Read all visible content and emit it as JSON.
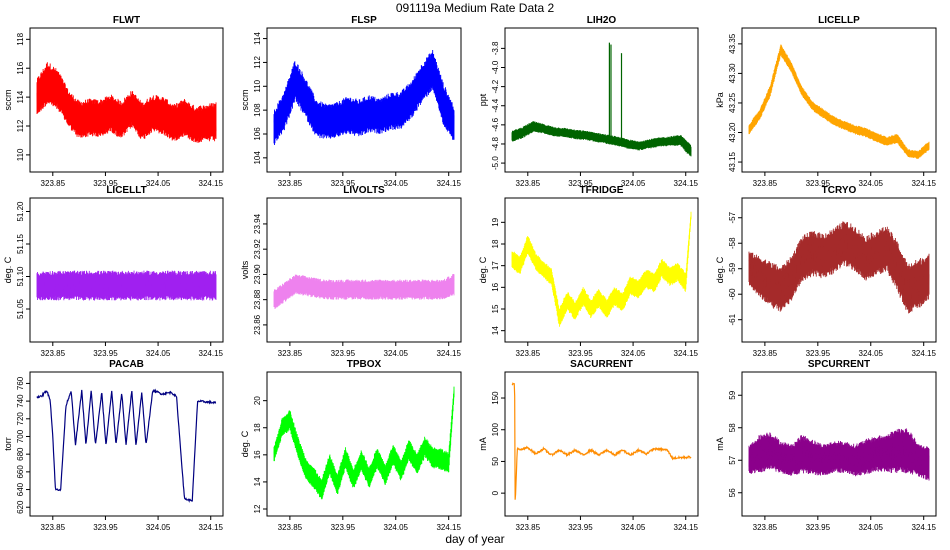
{
  "figure": {
    "title": "091119a   Medium Rate Data 2",
    "xlabel": "day of year"
  },
  "chart_data": [
    {
      "type": "line",
      "title": "FLWT",
      "ylabel": "sccm",
      "color": "#ff0000",
      "xlim": [
        323.82,
        324.16
      ],
      "ylim": [
        109.3,
        118.3
      ],
      "yticks": [
        110,
        112,
        114,
        116,
        118
      ],
      "xticks": [
        323.85,
        323.95,
        324.05,
        324.15
      ],
      "x": [
        323.82,
        323.84,
        323.86,
        323.88,
        323.9,
        323.92,
        323.94,
        323.96,
        323.98,
        324.0,
        324.02,
        324.04,
        324.06,
        324.08,
        324.1,
        324.12,
        324.14,
        324.16
      ],
      "y_mid": [
        114.0,
        115.0,
        114.5,
        113.2,
        112.4,
        112.6,
        112.5,
        112.9,
        112.4,
        113.2,
        112.3,
        112.9,
        112.7,
        112.2,
        112.6,
        112.1,
        112.2,
        112.3
      ],
      "y_band": [
        2.6,
        3.0,
        2.8,
        2.6,
        2.7,
        2.6,
        2.7,
        2.6,
        2.7,
        2.6,
        2.7,
        2.6,
        2.7,
        2.6,
        2.6,
        2.6,
        2.6,
        2.8
      ]
    },
    {
      "type": "line",
      "title": "FLSP",
      "ylabel": "sccm",
      "color": "#0000ff",
      "xlim": [
        323.82,
        324.16
      ],
      "ylim": [
        103.4,
        114.3
      ],
      "yticks": [
        104,
        106,
        108,
        110,
        112,
        114
      ],
      "xticks": [
        323.85,
        323.95,
        324.05,
        324.15
      ],
      "x": [
        323.82,
        323.84,
        323.86,
        323.88,
        323.9,
        323.92,
        323.94,
        323.96,
        323.98,
        324.0,
        324.02,
        324.04,
        324.06,
        324.08,
        324.1,
        324.12,
        324.14,
        324.16
      ],
      "y_mid": [
        106.5,
        108.0,
        110.5,
        109.0,
        107.3,
        107.0,
        107.2,
        107.6,
        107.3,
        107.7,
        107.5,
        107.9,
        108.0,
        108.9,
        110.3,
        111.4,
        108.5,
        106.8
      ],
      "y_band": [
        3.0,
        3.4,
        3.6,
        3.4,
        3.2,
        3.0,
        3.0,
        3.2,
        3.2,
        3.2,
        3.0,
        3.2,
        3.2,
        3.2,
        3.4,
        3.4,
        3.6,
        3.2
      ]
    },
    {
      "type": "line",
      "title": "LIH2O",
      "ylabel": "ppt",
      "color": "#006400",
      "xlim": [
        323.82,
        324.16
      ],
      "ylim": [
        -5.02,
        -3.66
      ],
      "yticks": [
        -5.0,
        -4.8,
        -4.6,
        -4.4,
        -4.2,
        -4.0,
        -3.8
      ],
      "xticks": [
        323.85,
        323.95,
        324.05,
        324.15
      ],
      "x": [
        323.82,
        323.84,
        323.86,
        323.88,
        323.9,
        323.92,
        323.94,
        323.96,
        323.98,
        324.0,
        324.02,
        324.04,
        324.06,
        324.08,
        324.1,
        324.12,
        324.14,
        324.16
      ],
      "y_mid": [
        -4.72,
        -4.68,
        -4.62,
        -4.64,
        -4.67,
        -4.68,
        -4.7,
        -4.71,
        -4.73,
        -4.75,
        -4.77,
        -4.8,
        -4.82,
        -4.8,
        -4.78,
        -4.77,
        -4.76,
        -4.88
      ],
      "y_band": [
        0.12,
        0.12,
        0.12,
        0.1,
        0.1,
        0.1,
        0.1,
        0.1,
        0.1,
        0.1,
        0.1,
        0.1,
        0.1,
        0.1,
        0.1,
        0.1,
        0.12,
        0.14
      ],
      "spikes": [
        {
          "x": 324.005,
          "y": -3.74
        },
        {
          "x": 324.008,
          "y": -3.76
        },
        {
          "x": 324.028,
          "y": -3.85
        }
      ]
    },
    {
      "type": "line",
      "title": "LICELLP",
      "ylabel": "kPa",
      "color": "#ffa500",
      "xlim": [
        323.82,
        324.16
      ],
      "ylim": [
        43.145,
        43.365
      ],
      "yticks": [
        43.15,
        43.2,
        43.25,
        43.3,
        43.35
      ],
      "xticks": [
        323.85,
        323.95,
        324.05,
        324.15
      ],
      "x": [
        323.82,
        323.84,
        323.86,
        323.88,
        323.9,
        323.92,
        323.94,
        323.96,
        323.98,
        324.0,
        324.02,
        324.04,
        324.06,
        324.08,
        324.1,
        324.12,
        324.14,
        324.16
      ],
      "y_mid": [
        43.205,
        43.23,
        43.27,
        43.34,
        43.31,
        43.27,
        43.245,
        43.232,
        43.22,
        43.212,
        43.205,
        43.2,
        43.192,
        43.185,
        43.19,
        43.165,
        43.162,
        43.178
      ],
      "y_band": [
        0.018,
        0.018,
        0.02,
        0.02,
        0.018,
        0.016,
        0.016,
        0.016,
        0.016,
        0.016,
        0.016,
        0.016,
        0.016,
        0.016,
        0.016,
        0.014,
        0.014,
        0.016
      ]
    },
    {
      "type": "line",
      "title": "LICELLT",
      "ylabel": "deg. C",
      "color": "#a020f0",
      "xlim": [
        323.82,
        324.16
      ],
      "ylim": [
        51.01,
        51.21
      ],
      "yticks": [
        51.05,
        51.1,
        51.15,
        51.2
      ],
      "xticks": [
        323.85,
        323.95,
        324.05,
        324.15
      ],
      "x": [
        323.82,
        323.84,
        323.86,
        323.88,
        323.9,
        323.92,
        323.94,
        323.96,
        323.98,
        324.0,
        324.02,
        324.04,
        324.06,
        324.08,
        324.1,
        324.12,
        324.14,
        324.16
      ],
      "y_mid": [
        51.085,
        51.086,
        51.086,
        51.086,
        51.086,
        51.086,
        51.086,
        51.086,
        51.086,
        51.086,
        51.086,
        51.086,
        51.086,
        51.086,
        51.086,
        51.086,
        51.086,
        51.086
      ],
      "y_band": [
        0.044,
        0.046,
        0.046,
        0.046,
        0.046,
        0.046,
        0.046,
        0.046,
        0.046,
        0.046,
        0.046,
        0.046,
        0.046,
        0.046,
        0.046,
        0.046,
        0.046,
        0.046
      ]
    },
    {
      "type": "line",
      "title": "LIVOLTS",
      "ylabel": "volts",
      "color": "#ee82ee",
      "xlim": [
        323.82,
        324.16
      ],
      "ylim": [
        23.852,
        23.955
      ],
      "yticks": [
        23.86,
        23.88,
        23.9,
        23.92,
        23.94
      ],
      "xticks": [
        323.85,
        323.95,
        324.05,
        324.15
      ],
      "x": [
        323.82,
        323.84,
        323.86,
        323.88,
        323.9,
        323.92,
        323.94,
        323.96,
        323.98,
        324.0,
        324.02,
        324.04,
        324.06,
        324.08,
        324.1,
        324.12,
        324.14,
        324.16
      ],
      "y_mid": [
        23.88,
        23.886,
        23.892,
        23.891,
        23.889,
        23.888,
        23.888,
        23.888,
        23.888,
        23.888,
        23.888,
        23.888,
        23.888,
        23.888,
        23.888,
        23.888,
        23.888,
        23.892
      ],
      "y_band": [
        0.016,
        0.016,
        0.016,
        0.016,
        0.016,
        0.016,
        0.016,
        0.016,
        0.016,
        0.016,
        0.016,
        0.016,
        0.016,
        0.016,
        0.016,
        0.016,
        0.016,
        0.018
      ]
    },
    {
      "type": "line",
      "title": "TFRIDGE",
      "ylabel": "deg. C",
      "color": "#ffff00",
      "xlim": [
        323.82,
        324.16
      ],
      "ylim": [
        13.8,
        19.8
      ],
      "yticks": [
        14,
        15,
        16,
        17,
        18,
        19
      ],
      "xticks": [
        323.85,
        323.95,
        324.05,
        324.15
      ],
      "x": [
        323.82,
        323.835,
        323.85,
        323.865,
        323.88,
        323.895,
        323.91,
        323.925,
        323.94,
        323.955,
        323.97,
        323.985,
        324.0,
        324.015,
        324.03,
        324.045,
        324.06,
        324.075,
        324.09,
        324.105,
        324.12,
        324.135,
        324.15,
        324.16
      ],
      "y_mid": [
        17.3,
        17.0,
        18.0,
        17.2,
        16.8,
        16.5,
        14.6,
        15.4,
        14.9,
        15.6,
        15.0,
        15.5,
        15.0,
        15.6,
        15.3,
        16.1,
        15.9,
        16.4,
        16.2,
        16.9,
        16.5,
        16.7,
        16.2,
        19.3
      ],
      "y_band": [
        0.9,
        0.9,
        0.9,
        0.8,
        0.8,
        0.8,
        0.9,
        0.9,
        0.9,
        0.9,
        0.9,
        0.9,
        0.9,
        0.9,
        0.9,
        0.9,
        0.9,
        0.9,
        0.9,
        0.9,
        0.9,
        0.9,
        0.9,
        0.4
      ]
    },
    {
      "type": "line",
      "title": "TCRYO",
      "ylabel": "deg. C",
      "color": "#a52a2a",
      "xlim": [
        323.82,
        324.16
      ],
      "ylim": [
        -61.6,
        -56.5
      ],
      "yticks": [
        -61,
        -60,
        -59,
        -58,
        -57
      ],
      "xticks": [
        323.85,
        323.95,
        324.05,
        324.15
      ],
      "x": [
        323.82,
        323.84,
        323.86,
        323.88,
        323.9,
        323.92,
        323.94,
        323.96,
        323.98,
        324.0,
        324.02,
        324.04,
        324.06,
        324.08,
        324.1,
        324.12,
        324.14,
        324.16
      ],
      "y_mid": [
        -59.0,
        -59.3,
        -59.6,
        -59.8,
        -59.4,
        -58.6,
        -58.4,
        -58.5,
        -58.3,
        -58.0,
        -58.2,
        -58.6,
        -58.4,
        -58.2,
        -58.9,
        -59.8,
        -59.6,
        -59.3
      ],
      "y_band": [
        1.4,
        1.6,
        1.8,
        1.8,
        1.8,
        1.8,
        1.8,
        1.8,
        1.8,
        1.8,
        1.8,
        1.8,
        1.8,
        1.8,
        2.0,
        2.0,
        2.0,
        1.8
      ]
    },
    {
      "type": "line",
      "title": "PACAB",
      "ylabel": "torr",
      "color": "#000080",
      "xlim": [
        323.82,
        324.16
      ],
      "ylim": [
        618,
        765
      ],
      "yticks": [
        620,
        640,
        660,
        680,
        700,
        720,
        740,
        760
      ],
      "xticks": [
        323.85,
        323.95,
        324.05,
        324.15
      ],
      "x": [
        323.82,
        323.828,
        323.838,
        323.845,
        323.85,
        323.855,
        323.865,
        323.875,
        323.885,
        323.893,
        323.905,
        323.913,
        323.923,
        323.931,
        323.943,
        323.951,
        323.962,
        323.97,
        323.981,
        323.989,
        324.0,
        324.008,
        324.019,
        324.027,
        324.04,
        324.05,
        324.058,
        324.075,
        324.085,
        324.1,
        324.108,
        324.115,
        324.125,
        324.16
      ],
      "y": [
        745,
        745,
        752,
        742,
        700,
        640,
        640,
        735,
        752,
        690,
        752,
        690,
        752,
        690,
        750,
        690,
        752,
        690,
        750,
        690,
        752,
        690,
        750,
        690,
        752,
        750,
        748,
        750,
        745,
        630,
        628,
        628,
        740,
        738
      ]
    },
    {
      "type": "line",
      "title": "TPBOX",
      "ylabel": "deg. C",
      "color": "#00ff00",
      "xlim": [
        323.82,
        324.16
      ],
      "ylim": [
        12.0,
        21.6
      ],
      "yticks": [
        12,
        14,
        16,
        18,
        20
      ],
      "xticks": [
        323.85,
        323.95,
        324.05,
        324.15
      ],
      "x": [
        323.82,
        323.835,
        323.85,
        323.865,
        323.88,
        323.895,
        323.91,
        323.925,
        323.94,
        323.955,
        323.97,
        323.985,
        324.0,
        324.015,
        324.03,
        324.045,
        324.06,
        324.075,
        324.09,
        324.105,
        324.12,
        324.135,
        324.15,
        324.16
      ],
      "y_mid": [
        16.0,
        18.0,
        18.6,
        16.6,
        15.0,
        14.3,
        13.4,
        15.3,
        13.8,
        15.8,
        14.2,
        15.6,
        14.3,
        15.8,
        14.5,
        16.0,
        14.8,
        16.4,
        15.3,
        16.6,
        15.8,
        15.7,
        15.4,
        20.6
      ],
      "y_band": [
        1.2,
        1.4,
        1.6,
        1.6,
        1.6,
        1.6,
        1.6,
        1.6,
        1.6,
        1.6,
        1.6,
        1.6,
        1.6,
        1.6,
        1.6,
        1.6,
        1.6,
        1.6,
        1.6,
        1.6,
        1.6,
        1.6,
        1.6,
        1.0
      ]
    },
    {
      "type": "line",
      "title": "SACURRENT",
      "ylabel": "mA",
      "color": "#ff8c00",
      "xlim": [
        323.82,
        324.16
      ],
      "ylim": [
        -25,
        180
      ],
      "yticks": [
        0,
        50,
        100,
        150
      ],
      "xticks": [
        323.85,
        323.95,
        324.05,
        324.15
      ],
      "x": [
        323.82,
        323.825,
        323.826,
        323.83,
        323.835,
        323.85,
        323.865,
        323.88,
        323.895,
        323.91,
        323.925,
        323.94,
        323.955,
        323.97,
        323.985,
        324.0,
        324.015,
        324.03,
        324.045,
        324.06,
        324.075,
        324.09,
        324.105,
        324.115,
        324.125,
        324.14,
        324.16
      ],
      "y": [
        172,
        172,
        -20,
        70,
        68,
        72,
        62,
        70,
        60,
        68,
        60,
        68,
        60,
        68,
        60,
        68,
        60,
        68,
        60,
        68,
        62,
        70,
        69,
        68,
        55,
        56,
        57
      ]
    },
    {
      "type": "line",
      "title": "SPCURRENT",
      "ylabel": "mA",
      "color": "#8b008b",
      "xlim": [
        323.82,
        324.16
      ],
      "ylim": [
        55.5,
        59.5
      ],
      "yticks": [
        56,
        57,
        58,
        59
      ],
      "xticks": [
        323.85,
        323.95,
        324.05,
        324.15
      ],
      "x": [
        323.82,
        323.84,
        323.86,
        323.88,
        323.9,
        323.92,
        323.94,
        323.96,
        323.98,
        324.0,
        324.02,
        324.04,
        324.06,
        324.08,
        324.1,
        324.12,
        324.14,
        324.16
      ],
      "y_mid": [
        57.0,
        57.2,
        57.3,
        57.1,
        57.0,
        57.2,
        57.1,
        57.0,
        57.1,
        57.1,
        57.0,
        57.1,
        57.2,
        57.2,
        57.3,
        57.3,
        57.0,
        56.9
      ],
      "y_band": [
        0.9,
        1.2,
        1.2,
        1.0,
        1.0,
        1.2,
        1.1,
        1.0,
        1.0,
        1.0,
        1.0,
        1.1,
        1.1,
        1.2,
        1.4,
        1.4,
        1.0,
        1.1
      ]
    }
  ]
}
